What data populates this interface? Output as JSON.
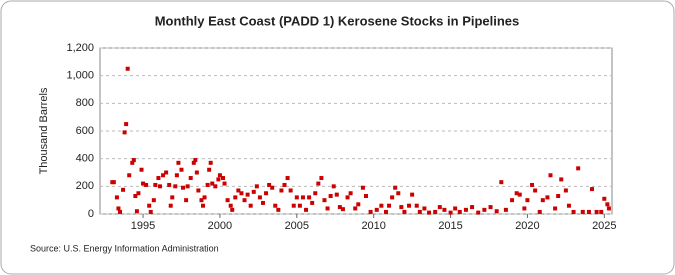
{
  "chart_data": {
    "type": "scatter",
    "title": "Monthly East Coast (PADD 1) Kerosene Stocks in Pipelines",
    "y_label": "Thousand Barrels",
    "source": "Source: U.S. Energy Information Administration",
    "color": "#cc0000",
    "grid": true,
    "xlim": [
      1992.2,
      2025.5
    ],
    "xticks": [
      1995,
      2000,
      2005,
      2010,
      2015,
      2020,
      2025
    ],
    "ylim": [
      0,
      1200
    ],
    "yticks": [
      0,
      200,
      400,
      600,
      800,
      {
        "value": 1000,
        "label": "1,000"
      },
      {
        "value": 1200,
        "label": "1,200"
      }
    ],
    "x": [
      1993.0,
      1993.1,
      1993.3,
      1993.4,
      1993.5,
      1993.7,
      1993.8,
      1993.9,
      1994.0,
      1994.1,
      1994.3,
      1994.4,
      1994.5,
      1994.6,
      1994.7,
      1994.9,
      1995.0,
      1995.2,
      1995.4,
      1995.5,
      1995.7,
      1995.8,
      1996.0,
      1996.1,
      1996.3,
      1996.5,
      1996.7,
      1996.8,
      1996.9,
      1997.1,
      1997.2,
      1997.3,
      1997.5,
      1997.6,
      1997.8,
      1997.9,
      1998.1,
      1998.3,
      1998.4,
      1998.5,
      1998.6,
      1998.8,
      1998.9,
      1999.0,
      1999.2,
      1999.3,
      1999.4,
      1999.5,
      1999.7,
      1999.9,
      2000.0,
      2000.2,
      2000.3,
      2000.5,
      2000.7,
      2000.8,
      2001.0,
      2001.2,
      2001.4,
      2001.6,
      2001.8,
      2002.0,
      2002.2,
      2002.4,
      2002.6,
      2002.8,
      2003.0,
      2003.2,
      2003.4,
      2003.6,
      2003.8,
      2004.0,
      2004.2,
      2004.4,
      2004.6,
      2004.8,
      2005.0,
      2005.2,
      2005.4,
      2005.6,
      2005.8,
      2006.0,
      2006.2,
      2006.4,
      2006.6,
      2006.8,
      2007.0,
      2007.2,
      2007.4,
      2007.6,
      2007.8,
      2008.0,
      2008.3,
      2008.5,
      2008.8,
      2009.0,
      2009.3,
      2009.5,
      2009.8,
      2010.2,
      2010.5,
      2010.8,
      2011.0,
      2011.2,
      2011.4,
      2011.6,
      2011.8,
      2012.0,
      2012.3,
      2012.5,
      2012.8,
      2013.0,
      2013.3,
      2013.6,
      2014.0,
      2014.3,
      2014.6,
      2015.0,
      2015.3,
      2015.6,
      2016.0,
      2016.4,
      2016.8,
      2017.2,
      2017.6,
      2018.0,
      2018.3,
      2018.6,
      2019.0,
      2019.3,
      2019.5,
      2019.8,
      2020.0,
      2020.3,
      2020.5,
      2020.8,
      2021.0,
      2021.3,
      2021.5,
      2021.8,
      2022.0,
      2022.2,
      2022.5,
      2022.7,
      2023.0,
      2023.3,
      2023.6,
      2024.0,
      2024.2,
      2024.5,
      2024.8,
      2025.0,
      2025.2,
      2025.3
    ],
    "values": [
      230,
      230,
      120,
      40,
      15,
      175,
      590,
      650,
      1050,
      280,
      370,
      390,
      130,
      20,
      150,
      320,
      220,
      210,
      60,
      15,
      100,
      210,
      260,
      200,
      280,
      300,
      210,
      60,
      120,
      200,
      280,
      370,
      320,
      190,
      100,
      200,
      260,
      370,
      390,
      300,
      170,
      100,
      60,
      120,
      210,
      320,
      370,
      220,
      200,
      250,
      280,
      260,
      220,
      100,
      60,
      30,
      120,
      170,
      150,
      100,
      140,
      60,
      160,
      200,
      120,
      80,
      150,
      210,
      190,
      60,
      30,
      170,
      210,
      260,
      170,
      60,
      120,
      60,
      120,
      30,
      120,
      80,
      150,
      220,
      260,
      100,
      40,
      130,
      200,
      140,
      50,
      35,
      120,
      150,
      40,
      70,
      190,
      130,
      15,
      30,
      60,
      15,
      60,
      120,
      190,
      150,
      50,
      15,
      60,
      140,
      60,
      15,
      40,
      10,
      15,
      50,
      30,
      10,
      40,
      15,
      30,
      50,
      10,
      30,
      50,
      20,
      230,
      30,
      100,
      150,
      140,
      40,
      100,
      210,
      170,
      15,
      100,
      120,
      280,
      40,
      130,
      250,
      170,
      60,
      15,
      330,
      15,
      15,
      180,
      15,
      15,
      110,
      70,
      40
    ]
  }
}
